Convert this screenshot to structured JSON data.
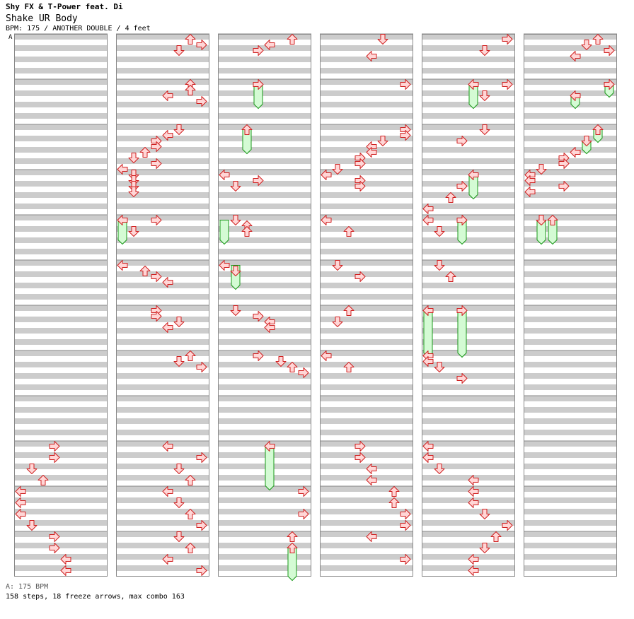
{
  "header": {
    "artist": "Shy FX & T-Power feat. Di",
    "title": "Shake UR Body",
    "info": "BPM: 175 / ANOTHER DOUBLE / 4 feet"
  },
  "footer": {
    "bpm_line": "A: 175 BPM",
    "summary": "158 steps, 18 freeze arrows, max combo 163"
  },
  "bpm_marker": "A",
  "colors": {
    "band_gray": "#cccccc",
    "arrow_fill": "#ffd6d6",
    "arrow_stroke": "#d02020",
    "freeze_fill": "#d4fbd4",
    "freeze_stroke": "#1a9a1a",
    "bpm_line": "#4a7acb"
  },
  "chart_data": {
    "type": "step-chart",
    "mode": "ANOTHER DOUBLE",
    "bpm": 175,
    "lanes": 8,
    "lane_directions": [
      "left",
      "down",
      "up",
      "right",
      "left",
      "down",
      "up",
      "right"
    ],
    "measures_per_column": 12,
    "rows_per_measure": 8,
    "columns": [
      {
        "notes": [],
        "freezes": []
      },
      {
        "notes": [
          [
            0,
            6
          ],
          [
            1,
            7
          ],
          [
            2,
            5
          ],
          [
            8,
            6
          ],
          [
            9,
            6
          ],
          [
            10,
            4
          ],
          [
            11,
            7
          ],
          [
            16,
            5
          ],
          [
            17,
            4
          ],
          [
            18,
            3
          ],
          [
            19,
            3
          ],
          [
            20,
            2
          ],
          [
            21,
            1
          ],
          [
            22,
            3
          ],
          [
            23,
            0
          ],
          [
            24,
            1
          ],
          [
            25,
            1
          ],
          [
            26,
            1
          ],
          [
            27,
            1
          ],
          [
            32,
            0
          ],
          [
            32,
            3
          ],
          [
            34,
            1
          ],
          [
            40,
            0
          ],
          [
            41,
            2
          ],
          [
            42,
            3
          ],
          [
            43,
            4
          ],
          [
            48,
            3
          ],
          [
            49,
            3
          ],
          [
            50,
            5
          ],
          [
            51,
            4
          ],
          [
            56,
            6
          ],
          [
            57,
            5
          ],
          [
            58,
            7
          ]
        ],
        "freezes": [
          [
            32,
            35.5,
            0
          ]
        ]
      },
      {
        "notes": [
          [
            0,
            6
          ],
          [
            1,
            4
          ],
          [
            2,
            3
          ],
          [
            8,
            3
          ],
          [
            16,
            2
          ],
          [
            24,
            0
          ],
          [
            25,
            3
          ],
          [
            26,
            1
          ],
          [
            32,
            1
          ],
          [
            33,
            2
          ],
          [
            34,
            2
          ],
          [
            40,
            0
          ],
          [
            41,
            1
          ],
          [
            48,
            1
          ],
          [
            49,
            3
          ],
          [
            50,
            4
          ],
          [
            51,
            4
          ],
          [
            56,
            3
          ],
          [
            57,
            5
          ],
          [
            58,
            6
          ],
          [
            59,
            7
          ]
        ],
        "freezes": [
          [
            8,
            11.5,
            3
          ],
          [
            16,
            19.5,
            2
          ],
          [
            32,
            35.5,
            0
          ],
          [
            40,
            43.5,
            1
          ]
        ]
      },
      {
        "notes": [
          [
            0,
            5
          ],
          [
            3,
            4
          ],
          [
            8,
            7
          ],
          [
            16,
            7
          ],
          [
            17,
            7
          ],
          [
            18,
            5
          ],
          [
            19,
            4
          ],
          [
            20,
            4
          ],
          [
            21,
            3
          ],
          [
            22,
            3
          ],
          [
            23,
            1
          ],
          [
            24,
            0
          ],
          [
            25,
            3
          ],
          [
            26,
            3
          ],
          [
            32,
            0
          ],
          [
            34,
            2
          ],
          [
            40,
            1
          ],
          [
            42,
            3
          ],
          [
            48,
            2
          ],
          [
            50,
            1
          ],
          [
            56,
            0
          ],
          [
            58,
            2
          ]
        ],
        "freezes": []
      },
      {
        "notes": [
          [
            0,
            7
          ],
          [
            2,
            5
          ],
          [
            8,
            4
          ],
          [
            8,
            7
          ],
          [
            10,
            5
          ],
          [
            16,
            5
          ],
          [
            18,
            3
          ],
          [
            24,
            4
          ],
          [
            26,
            3
          ],
          [
            28,
            2
          ],
          [
            30,
            0
          ],
          [
            32,
            0
          ],
          [
            32,
            3
          ],
          [
            34,
            1
          ],
          [
            40,
            1
          ],
          [
            42,
            2
          ],
          [
            48,
            0
          ],
          [
            48,
            3
          ],
          [
            56,
            0
          ],
          [
            57,
            0
          ],
          [
            58,
            1
          ],
          [
            60,
            3
          ]
        ],
        "freezes": [
          [
            8,
            11.5,
            4
          ],
          [
            24,
            27.5,
            4
          ],
          [
            32,
            35.5,
            3
          ],
          [
            48,
            55.5,
            0
          ],
          [
            48,
            55.5,
            3
          ]
        ]
      },
      {
        "notes": [
          [
            0,
            6
          ],
          [
            1,
            5
          ],
          [
            2,
            7
          ],
          [
            3,
            4
          ],
          [
            8,
            7
          ],
          [
            10,
            4
          ],
          [
            16,
            6
          ],
          [
            18,
            5
          ],
          [
            20,
            4
          ],
          [
            21,
            3
          ],
          [
            22,
            3
          ],
          [
            23,
            1
          ],
          [
            24,
            0
          ],
          [
            25,
            0
          ],
          [
            26,
            3
          ],
          [
            27,
            0
          ],
          [
            32,
            1
          ],
          [
            32,
            2
          ]
        ],
        "freezes": [
          [
            8,
            9.5,
            7
          ],
          [
            10,
            11.5,
            4
          ],
          [
            16,
            17.5,
            6
          ],
          [
            18,
            19.5,
            5
          ],
          [
            32,
            35.5,
            1
          ],
          [
            32,
            35.5,
            2
          ]
        ]
      }
    ],
    "freeze_continuations": [
      {
        "column": 5,
        "from": 0,
        "to": 0
      }
    ],
    "lower_section": {
      "columns": [
        {
          "notes": [
            [
              0,
              3
            ],
            [
              1,
              3
            ],
            [
              2,
              1
            ],
            [
              3,
              2
            ],
            [
              4,
              0
            ],
            [
              5,
              0
            ],
            [
              6,
              0
            ],
            [
              7,
              1
            ],
            [
              8,
              3
            ],
            [
              9,
              3
            ],
            [
              10,
              4
            ],
            [
              11,
              4
            ]
          ],
          "freezes": []
        },
        {
          "notes": [
            [
              0,
              4
            ],
            [
              1,
              7
            ],
            [
              2,
              5
            ],
            [
              3,
              6
            ],
            [
              4,
              4
            ],
            [
              5,
              5
            ],
            [
              6,
              6
            ],
            [
              7,
              7
            ],
            [
              8,
              5
            ],
            [
              9,
              6
            ],
            [
              10,
              4
            ],
            [
              11,
              7
            ]
          ],
          "freezes": []
        },
        {
          "notes": [
            [
              0,
              4
            ],
            [
              4,
              7
            ],
            [
              6,
              7
            ],
            [
              8,
              6
            ],
            [
              9,
              6
            ]
          ],
          "freezes": [
            [
              0,
              3.5,
              4
            ],
            [
              9,
              11.5,
              6
            ]
          ]
        },
        {
          "notes": [
            [
              0,
              3
            ],
            [
              1,
              3
            ],
            [
              2,
              4
            ],
            [
              3,
              4
            ],
            [
              4,
              6
            ],
            [
              5,
              6
            ],
            [
              6,
              7
            ],
            [
              7,
              7
            ],
            [
              8,
              4
            ],
            [
              10,
              7
            ]
          ],
          "freezes": []
        },
        {
          "notes": [
            [
              0,
              0
            ],
            [
              1,
              0
            ],
            [
              2,
              1
            ],
            [
              3,
              4
            ],
            [
              4,
              4
            ],
            [
              5,
              4
            ],
            [
              6,
              5
            ],
            [
              7,
              7
            ],
            [
              8,
              6
            ],
            [
              9,
              5
            ],
            [
              10,
              4
            ],
            [
              11,
              4
            ]
          ],
          "freezes": []
        },
        {
          "notes": [],
          "freezes": []
        }
      ]
    }
  }
}
